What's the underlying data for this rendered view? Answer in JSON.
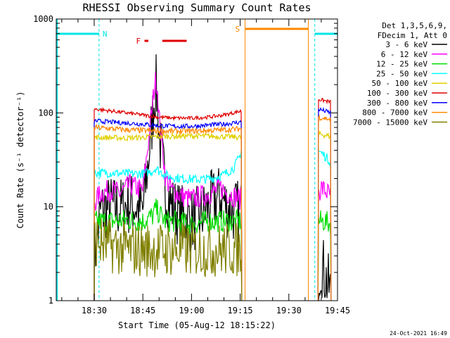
{
  "chart_data": {
    "type": "line",
    "title": "RHESSI Observing Summary Count Rates",
    "xlabel": "Start Time (05-Aug-12 18:15:22)",
    "ylabel": "Count Rate (s⁻¹ detector⁻¹)",
    "y_scale": "log",
    "ylim": [
      1,
      1000
    ],
    "xlim_minutes": [
      18.3,
      105.0
    ],
    "x_tick_labels": [
      "18:30",
      "18:45",
      "19:00",
      "19:15",
      "19:30",
      "19:45"
    ],
    "x_tick_minutes": [
      30,
      45,
      60,
      75,
      90,
      105
    ],
    "y_tick_labels": [
      "1",
      "10",
      "100",
      "1000"
    ],
    "y_tick_values": [
      1,
      10,
      100,
      1000
    ],
    "grid": false,
    "legend_position": "right",
    "legend_header": [
      "Det 1,3,5,6,9,",
      "FDecim 1, Att 0"
    ],
    "flags": [
      {
        "label": "N",
        "color": "#00e5e5",
        "spans_minutes": [
          [
            18.3,
            31.5
          ],
          [
            98.0,
            105.0
          ]
        ]
      },
      {
        "label": "F",
        "color": "#e00000",
        "spans_minutes": [
          [
            45.5,
            46.7
          ],
          [
            51.0,
            58.5
          ]
        ]
      },
      {
        "label": "S",
        "color": "#ff8800",
        "spans_minutes": [
          [
            76.5,
            96.0
          ]
        ]
      }
    ],
    "footer": "24-Oct-2021 16:49",
    "series": [
      {
        "name": "3 - 6 keV",
        "color": "#000000",
        "segments": [
          {
            "x": [
              30.0,
              32.0,
              35.0,
              38.0,
              41.0,
              43.0,
              45.0,
              47.0,
              48.5,
              49.0,
              49.5,
              50.0,
              51.0,
              52.0,
              54.0,
              57.0,
              60.0,
              63.0,
              66.0,
              69.0,
              71.0,
              73.0,
              75.5
            ],
            "y": [
              2.5,
              9.0,
              10.0,
              9.5,
              11.0,
              10.0,
              9.0,
              40.0,
              140.0,
              200.0,
              140.0,
              60.0,
              30.0,
              15.0,
              10.0,
              8.0,
              7.0,
              8.0,
              11.0,
              13.0,
              10.0,
              9.0,
              9.0
            ]
          },
          {
            "x": [
              99.0,
              100.0,
              101.0,
              102.0,
              103.0
            ],
            "y": [
              2.0,
              2.5,
              2.0,
              1.5,
              1.2
            ]
          }
        ]
      },
      {
        "name": "6 - 12 keV",
        "color": "#ff00ff",
        "segments": [
          {
            "x": [
              30.0,
              32.0,
              35.0,
              38.0,
              41.0,
              43.0,
              45.0,
              47.0,
              48.5,
              49.0,
              49.5,
              50.0,
              51.0,
              52.0,
              54.0,
              57.0,
              60.0,
              63.0,
              66.0,
              69.0,
              71.0,
              73.0,
              75.5
            ],
            "y": [
              11.0,
              14.0,
              15.0,
              14.0,
              17.0,
              16.0,
              15.0,
              60.0,
              180.0,
              230.0,
              180.0,
              90.0,
              45.0,
              20.0,
              15.0,
              13.0,
              12.0,
              13.0,
              14.0,
              16.0,
              14.0,
              13.0,
              12.0
            ]
          },
          {
            "x": [
              99.0,
              100.0,
              101.0,
              102.0,
              103.0
            ],
            "y": [
              14.0,
              16.0,
              15.0,
              14.0,
              13.0
            ]
          }
        ]
      },
      {
        "name": "12 - 25 keV",
        "color": "#00dd00",
        "segments": [
          {
            "x": [
              30.0,
              35.0,
              40.0,
              45.0,
              48.0,
              49.0,
              50.0,
              52.0,
              55.0,
              60.0,
              65.0,
              70.0,
              75.5
            ],
            "y": [
              7.0,
              7.0,
              7.2,
              7.0,
              8.0,
              9.5,
              8.5,
              7.0,
              7.0,
              6.5,
              7.0,
              7.0,
              7.0
            ]
          },
          {
            "x": [
              99.0,
              101.0,
              103.0
            ],
            "y": [
              7.0,
              7.0,
              6.5
            ]
          }
        ]
      },
      {
        "name": "25 - 50 keV",
        "color": "#00ffff",
        "segments": [
          {
            "x": [
              30.0,
              35.0,
              40.0,
              45.0,
              48.0,
              49.0,
              50.0,
              53.0,
              57.0,
              62.0,
              66.0,
              70.0,
              73.0,
              75.0,
              75.5
            ],
            "y": [
              23.0,
              23.0,
              22.5,
              22.5,
              24.0,
              26.0,
              24.0,
              21.0,
              20.0,
              19.5,
              20.0,
              22.0,
              26.0,
              35.0,
              45.0
            ]
          },
          {
            "x": [
              99.0,
              101.0,
              103.0
            ],
            "y": [
              40.0,
              35.0,
              30.0
            ]
          }
        ]
      },
      {
        "name": "50 - 100 keV",
        "color": "#e0d000",
        "segments": [
          {
            "x": [
              30.0,
              40.0,
              50.0,
              60.0,
              70.0,
              75.5
            ],
            "y": [
              55.0,
              54.0,
              56.0,
              57.0,
              56.0,
              55.0
            ]
          },
          {
            "x": [
              99.0,
              101.0,
              103.0
            ],
            "y": [
              60.0,
              58.0,
              56.0
            ]
          }
        ]
      },
      {
        "name": "100 - 300 keV",
        "color": "#e00000",
        "segments": [
          {
            "x": [
              30.0,
              35.0,
              40.0,
              45.0,
              50.0,
              55.0,
              60.0,
              65.0,
              70.0,
              75.5
            ],
            "y": [
              110.0,
              105.0,
              100.0,
              95.0,
              90.0,
              88.0,
              88.0,
              90.0,
              95.0,
              105.0
            ]
          },
          {
            "x": [
              99.0,
              101.0,
              103.0
            ],
            "y": [
              140.0,
              135.0,
              130.0
            ]
          }
        ]
      },
      {
        "name": "300 - 800 keV",
        "color": "#0000ff",
        "segments": [
          {
            "x": [
              30.0,
              35.0,
              40.0,
              45.0,
              50.0,
              55.0,
              60.0,
              65.0,
              70.0,
              75.5
            ],
            "y": [
              82.0,
              80.0,
              78.0,
              76.0,
              73.0,
              72.0,
              72.0,
              74.0,
              76.0,
              80.0
            ]
          },
          {
            "x": [
              99.0,
              101.0,
              103.0
            ],
            "y": [
              110.0,
              105.0,
              100.0
            ]
          }
        ]
      },
      {
        "name": "800 - 7000 keV",
        "color": "#ff8800",
        "segments": [
          {
            "x": [
              30.0,
              35.0,
              40.0,
              45.0,
              50.0,
              55.0,
              60.0,
              65.0,
              70.0,
              75.5
            ],
            "y": [
              70.0,
              68.0,
              66.0,
              65.0,
              64.0,
              64.0,
              64.0,
              65.0,
              66.0,
              68.0
            ]
          },
          {
            "x": [
              99.0,
              101.0,
              103.0
            ],
            "y": [
              90.0,
              88.0,
              85.0
            ]
          }
        ]
      },
      {
        "name": "7000 - 15000 keV",
        "color": "#808000",
        "segments": [
          {
            "x": [
              30.0,
              33.0,
              36.0,
              40.0,
              45.0,
              50.0,
              55.0,
              60.0,
              65.0,
              70.0,
              75.5
            ],
            "y": [
              4.5,
              4.0,
              3.8,
              3.5,
              3.5,
              3.5,
              3.5,
              3.5,
              3.5,
              3.5,
              3.5
            ]
          }
        ]
      }
    ]
  }
}
